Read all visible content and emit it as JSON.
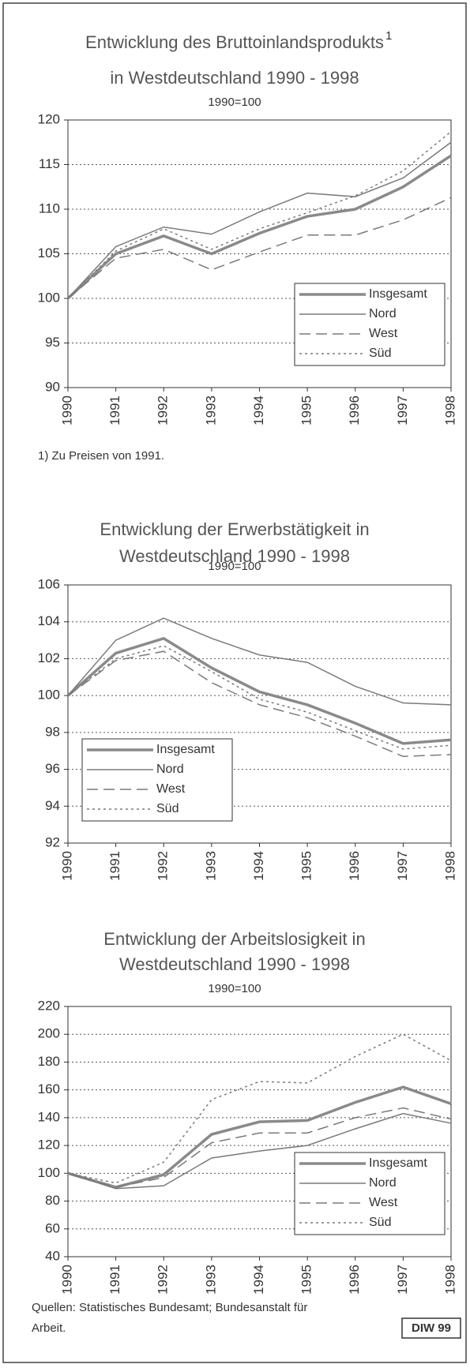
{
  "chart_data": [
    {
      "type": "line",
      "title": [
        "Entwicklung des Bruttoinlandsprodukts",
        "in Westdeutschland 1990 - 1998"
      ],
      "title_note": "1",
      "subtitle": "1990=100",
      "categories": [
        "1990",
        "1991",
        "1992",
        "1993",
        "1994",
        "1995",
        "1996",
        "1997",
        "1998"
      ],
      "series": [
        {
          "name": "Insgesamt",
          "color": "#8a8a8a",
          "style": "solid",
          "width": 3.5,
          "values": [
            100,
            105,
            107,
            105,
            107.3,
            109.2,
            110,
            112.5,
            116
          ]
        },
        {
          "name": "Nord",
          "color": "#7a7a7a",
          "style": "solid",
          "width": 1.5,
          "values": [
            100,
            105.8,
            108,
            107.2,
            109.7,
            111.8,
            111.4,
            113.5,
            117.5
          ]
        },
        {
          "name": "West",
          "color": "#7a7a7a",
          "style": "dashed",
          "width": 1.5,
          "values": [
            100,
            104.5,
            105.5,
            103.2,
            105.2,
            107.1,
            107.1,
            108.8,
            111.3
          ]
        },
        {
          "name": "Süd",
          "color": "#7a7a7a",
          "style": "dotted",
          "width": 1.5,
          "values": [
            100,
            105.3,
            107.8,
            105.5,
            107.8,
            109.6,
            111.5,
            114.3,
            118.7
          ]
        }
      ],
      "ylim": [
        90,
        120
      ],
      "yticks": [
        90,
        95,
        100,
        105,
        110,
        115,
        120
      ],
      "grid": true,
      "legend": "lower right",
      "footnote": "1) Zu Preisen von 1991."
    },
    {
      "type": "line",
      "title": [
        "Entwicklung der Erwerbstätigkeit in",
        "Westdeutschland 1990 - 1998"
      ],
      "subtitle": "1990=100",
      "categories": [
        "1990",
        "1991",
        "1992",
        "1993",
        "1994",
        "1995",
        "1996",
        "1997",
        "1998"
      ],
      "series": [
        {
          "name": "Insgesamt",
          "color": "#8a8a8a",
          "style": "solid",
          "width": 3.5,
          "values": [
            100,
            102.3,
            103.1,
            101.5,
            100.2,
            99.5,
            98.5,
            97.4,
            97.6
          ]
        },
        {
          "name": "Nord",
          "color": "#7a7a7a",
          "style": "solid",
          "width": 1.5,
          "values": [
            100,
            103,
            104.2,
            103.1,
            102.2,
            101.8,
            100.5,
            99.6,
            99.5
          ]
        },
        {
          "name": "West",
          "color": "#7a7a7a",
          "style": "dashed",
          "width": 1.5,
          "values": [
            100,
            101.9,
            102.4,
            100.7,
            99.5,
            98.8,
            97.8,
            96.7,
            96.8
          ]
        },
        {
          "name": "Süd",
          "color": "#7a7a7a",
          "style": "dotted",
          "width": 1.5,
          "values": [
            100,
            102,
            102.7,
            101.3,
            99.8,
            99.1,
            98.1,
            97.1,
            97.3
          ]
        }
      ],
      "ylim": [
        92,
        106
      ],
      "yticks": [
        92,
        94,
        96,
        98,
        100,
        102,
        104,
        106
      ],
      "grid": true,
      "legend": "lower left"
    },
    {
      "type": "line",
      "title": [
        "Entwicklung der Arbeitslosigkeit in",
        "Westdeutschland 1990 - 1998"
      ],
      "subtitle": "1990=100",
      "categories": [
        "1990",
        "1991",
        "1992",
        "1993",
        "1994",
        "1995",
        "1996",
        "1997",
        "1998"
      ],
      "series": [
        {
          "name": "Insgesamt",
          "color": "#8a8a8a",
          "style": "solid",
          "width": 3.5,
          "values": [
            100,
            90,
            99,
            128,
            137,
            138,
            151,
            162,
            150
          ]
        },
        {
          "name": "Nord",
          "color": "#7a7a7a",
          "style": "solid",
          "width": 1.5,
          "values": [
            100,
            89,
            91,
            111,
            116,
            120,
            132,
            143,
            136
          ]
        },
        {
          "name": "West",
          "color": "#7a7a7a",
          "style": "dashed",
          "width": 1.5,
          "values": [
            100,
            90,
            97,
            122,
            129,
            129,
            140,
            147,
            139
          ]
        },
        {
          "name": "Süd",
          "color": "#7a7a7a",
          "style": "dotted",
          "width": 1.5,
          "values": [
            100,
            93,
            108,
            153,
            166,
            165,
            184,
            200,
            181
          ]
        }
      ],
      "ylim": [
        40,
        220
      ],
      "yticks": [
        40,
        60,
        80,
        100,
        120,
        140,
        160,
        180,
        200,
        220
      ],
      "grid": true,
      "legend": "lower right"
    }
  ],
  "source": [
    "Quellen: Statistisches Bundesamt; Bundesanstalt für",
    "Arbeit."
  ],
  "badge": "DIW 99"
}
